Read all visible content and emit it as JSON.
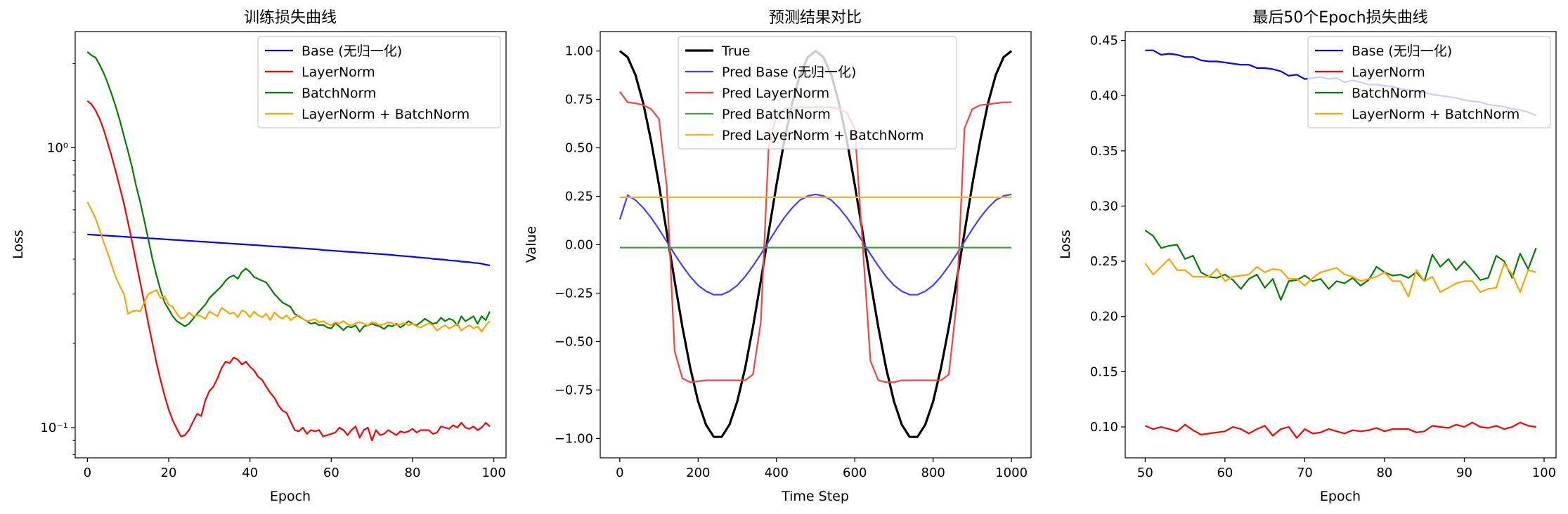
{
  "colors": {
    "blue": "#0000ff",
    "red": "#ff0000",
    "green": "#008000",
    "orange": "#ffa500",
    "black": "#000000"
  },
  "chart_data": [
    {
      "type": "line",
      "title": "训练损失曲线",
      "xlabel": "Epoch",
      "ylabel": "Loss",
      "yscale": "log",
      "xlim": [
        -3,
        103
      ],
      "ylim": [
        0.078,
        2.6
      ],
      "xticks": [
        0,
        20,
        40,
        60,
        80,
        100
      ],
      "xtick_labels": [
        "0",
        "20",
        "40",
        "60",
        "80",
        "100"
      ],
      "yticks": [
        0.1,
        1.0
      ],
      "ytick_labels": [
        "10⁻¹",
        "10⁰"
      ],
      "legend_position": "top-right",
      "series": [
        {
          "name": "Base (无归一化)",
          "color": "#0000ff",
          "x_start": 0,
          "x_step": 1,
          "values": [
            0.49,
            0.489,
            0.488,
            0.487,
            0.486,
            0.485,
            0.484,
            0.483,
            0.482,
            0.481,
            0.48,
            0.479,
            0.478,
            0.477,
            0.476,
            0.475,
            0.474,
            0.473,
            0.472,
            0.471,
            0.47,
            0.469,
            0.468,
            0.467,
            0.466,
            0.465,
            0.464,
            0.463,
            0.462,
            0.461,
            0.46,
            0.459,
            0.458,
            0.457,
            0.456,
            0.455,
            0.454,
            0.453,
            0.452,
            0.451,
            0.45,
            0.449,
            0.448,
            0.447,
            0.446,
            0.445,
            0.444,
            0.443,
            0.442,
            0.441,
            0.44,
            0.439,
            0.438,
            0.437,
            0.436,
            0.435,
            0.434,
            0.433,
            0.431,
            0.43,
            0.429,
            0.428,
            0.427,
            0.426,
            0.425,
            0.424,
            0.423,
            0.422,
            0.421,
            0.42,
            0.419,
            0.418,
            0.417,
            0.416,
            0.415,
            0.414,
            0.412,
            0.411,
            0.41,
            0.409,
            0.408,
            0.406,
            0.405,
            0.404,
            0.403,
            0.401,
            0.4,
            0.399,
            0.398,
            0.396,
            0.395,
            0.394,
            0.392,
            0.391,
            0.39,
            0.388,
            0.387,
            0.385,
            0.382,
            0.38
          ]
        },
        {
          "name": "LayerNorm",
          "color": "#ff0000",
          "x_start": 0,
          "x_step": 1,
          "values": [
            1.47,
            1.43,
            1.36,
            1.27,
            1.16,
            1.04,
            0.93,
            0.82,
            0.72,
            0.63,
            0.54,
            0.46,
            0.39,
            0.33,
            0.28,
            0.235,
            0.2,
            0.17,
            0.148,
            0.13,
            0.116,
            0.106,
            0.099,
            0.093,
            0.094,
            0.098,
            0.105,
            0.112,
            0.11,
            0.125,
            0.135,
            0.14,
            0.15,
            0.163,
            0.172,
            0.17,
            0.178,
            0.175,
            0.168,
            0.172,
            0.165,
            0.16,
            0.152,
            0.148,
            0.14,
            0.133,
            0.128,
            0.12,
            0.115,
            0.113,
            0.105,
            0.098,
            0.097,
            0.1,
            0.095,
            0.098,
            0.097,
            0.098,
            0.093,
            0.094,
            0.095,
            0.096,
            0.1,
            0.098,
            0.094,
            0.098,
            0.101,
            0.092,
            0.098,
            0.1,
            0.09,
            0.098,
            0.094,
            0.095,
            0.098,
            0.096,
            0.094,
            0.097,
            0.096,
            0.097,
            0.099,
            0.096,
            0.098,
            0.098,
            0.098,
            0.095,
            0.096,
            0.101,
            0.1,
            0.099,
            0.102,
            0.1,
            0.104,
            0.1,
            0.099,
            0.101,
            0.098,
            0.1,
            0.104,
            0.101
          ]
        },
        {
          "name": "BatchNorm",
          "color": "#008000",
          "x_start": 0,
          "x_step": 1,
          "values": [
            2.2,
            2.14,
            2.1,
            1.98,
            1.85,
            1.7,
            1.55,
            1.4,
            1.25,
            1.1,
            0.97,
            0.85,
            0.73,
            0.64,
            0.55,
            0.47,
            0.4,
            0.35,
            0.31,
            0.28,
            0.265,
            0.25,
            0.24,
            0.235,
            0.23,
            0.235,
            0.245,
            0.255,
            0.265,
            0.275,
            0.29,
            0.3,
            0.31,
            0.32,
            0.335,
            0.345,
            0.35,
            0.34,
            0.36,
            0.37,
            0.36,
            0.345,
            0.34,
            0.335,
            0.33,
            0.315,
            0.3,
            0.29,
            0.28,
            0.275,
            0.27,
            0.255,
            0.25,
            0.245,
            0.24,
            0.235,
            0.237,
            0.232,
            0.233,
            0.228,
            0.226,
            0.236,
            0.23,
            0.223,
            0.23,
            0.228,
            0.232,
            0.22,
            0.23,
            0.232,
            0.235,
            0.232,
            0.23,
            0.225,
            0.232,
            0.23,
            0.235,
            0.228,
            0.233,
            0.24,
            0.235,
            0.232,
            0.238,
            0.245,
            0.24,
            0.235,
            0.237,
            0.247,
            0.24,
            0.245,
            0.242,
            0.232,
            0.25,
            0.24,
            0.245,
            0.25,
            0.235,
            0.25,
            0.242,
            0.26
          ]
        },
        {
          "name": "LayerNorm + BatchNorm",
          "color": "#ffa500",
          "x_start": 0,
          "x_step": 1,
          "values": [
            0.64,
            0.6,
            0.56,
            0.51,
            0.46,
            0.42,
            0.38,
            0.345,
            0.32,
            0.3,
            0.255,
            0.26,
            0.262,
            0.26,
            0.28,
            0.3,
            0.305,
            0.31,
            0.29,
            0.295,
            0.275,
            0.27,
            0.255,
            0.245,
            0.248,
            0.258,
            0.25,
            0.252,
            0.25,
            0.245,
            0.26,
            0.255,
            0.25,
            0.268,
            0.262,
            0.255,
            0.258,
            0.248,
            0.262,
            0.258,
            0.248,
            0.26,
            0.252,
            0.248,
            0.255,
            0.242,
            0.258,
            0.25,
            0.245,
            0.252,
            0.242,
            0.248,
            0.252,
            0.245,
            0.24,
            0.242,
            0.244,
            0.238,
            0.24,
            0.235,
            0.232,
            0.238,
            0.236,
            0.24,
            0.234,
            0.232,
            0.236,
            0.238,
            0.235,
            0.232,
            0.238,
            0.236,
            0.232,
            0.234,
            0.238,
            0.236,
            0.232,
            0.234,
            0.236,
            0.232,
            0.235,
            0.23,
            0.228,
            0.232,
            0.236,
            0.232,
            0.222,
            0.228,
            0.232,
            0.226,
            0.23,
            0.235,
            0.222,
            0.228,
            0.232,
            0.226,
            0.23,
            0.22,
            0.232,
            0.24
          ]
        }
      ]
    },
    {
      "type": "line",
      "title": "预测结果对比",
      "xlabel": "Time Step",
      "ylabel": "Value",
      "yscale": "linear",
      "xlim": [
        -50,
        1050
      ],
      "ylim": [
        -1.1,
        1.1
      ],
      "xticks": [
        0,
        200,
        400,
        600,
        800,
        1000
      ],
      "xtick_labels": [
        "0",
        "200",
        "400",
        "600",
        "800",
        "1000"
      ],
      "yticks": [
        1.0,
        0.75,
        0.5,
        0.25,
        0.0,
        -0.25,
        -0.5,
        -0.75,
        -1.0
      ],
      "ytick_labels": [
        "1.00",
        "0.75",
        "0.50",
        "0.25",
        "0.00",
        "−0.25",
        "−0.50",
        "−0.75",
        "−1.00"
      ],
      "legend_position": "top-left",
      "series": [
        {
          "name": "True",
          "color": "#000000",
          "x_start": 0,
          "x_step": 20,
          "values": [
            1.0,
            0.968,
            0.876,
            0.729,
            0.536,
            0.309,
            0.063,
            -0.187,
            -0.426,
            -0.637,
            -0.809,
            -0.929,
            -0.992,
            -0.992,
            -0.929,
            -0.809,
            -0.637,
            -0.426,
            -0.187,
            0.063,
            0.309,
            0.536,
            0.729,
            0.876,
            0.968,
            1.0,
            0.968,
            0.876,
            0.729,
            0.536,
            0.309,
            0.063,
            -0.187,
            -0.426,
            -0.637,
            -0.809,
            -0.929,
            -0.992,
            -0.992,
            -0.929,
            -0.809,
            -0.637,
            -0.426,
            -0.187,
            0.063,
            0.309,
            0.536,
            0.729,
            0.876,
            0.968,
            1.0
          ]
        },
        {
          "name": "Pred Base (无归一化)",
          "color": "#4040ff",
          "x_start": 0,
          "x_step": 20,
          "values": [
            0.13,
            0.255,
            0.23,
            0.19,
            0.14,
            0.08,
            0.016,
            -0.049,
            -0.11,
            -0.165,
            -0.21,
            -0.24,
            -0.258,
            -0.258,
            -0.24,
            -0.21,
            -0.165,
            -0.11,
            -0.049,
            0.016,
            0.08,
            0.14,
            0.19,
            0.23,
            0.252,
            0.26,
            0.252,
            0.23,
            0.19,
            0.14,
            0.08,
            0.016,
            -0.049,
            -0.11,
            -0.165,
            -0.21,
            -0.24,
            -0.258,
            -0.258,
            -0.24,
            -0.21,
            -0.165,
            -0.11,
            -0.049,
            0.016,
            0.08,
            0.14,
            0.19,
            0.23,
            0.252,
            0.26
          ]
        },
        {
          "name": "Pred LayerNorm",
          "color": "#ff4040",
          "x_start": 0,
          "x_step": 20,
          "values": [
            0.79,
            0.735,
            0.73,
            0.72,
            0.7,
            0.65,
            0.3,
            -0.55,
            -0.69,
            -0.71,
            -0.705,
            -0.7,
            -0.7,
            -0.7,
            -0.7,
            -0.7,
            -0.7,
            -0.67,
            -0.4,
            0.5,
            0.67,
            0.7,
            0.71,
            0.71,
            0.71,
            0.71,
            0.71,
            0.71,
            0.7,
            0.68,
            0.6,
            0.0,
            -0.6,
            -0.7,
            -0.71,
            -0.71,
            -0.7,
            -0.7,
            -0.7,
            -0.7,
            -0.7,
            -0.7,
            -0.67,
            -0.3,
            0.6,
            0.7,
            0.72,
            0.725,
            0.73,
            0.735,
            0.735
          ]
        },
        {
          "name": "Pred BatchNorm",
          "color": "#40a040",
          "x_start": 0,
          "x_step": 1000,
          "values": [
            -0.015,
            -0.015
          ]
        },
        {
          "name": "Pred LayerNorm + BatchNorm",
          "color": "#ffb030",
          "x_start": 0,
          "x_step": 1000,
          "values": [
            0.245,
            0.245
          ]
        }
      ]
    },
    {
      "type": "line",
      "title": "最后50个Epoch损失曲线",
      "xlabel": "Epoch",
      "ylabel": "Loss",
      "yscale": "linear",
      "xlim": [
        47.5,
        101.5
      ],
      "ylim": [
        0.072,
        0.458
      ],
      "xticks": [
        50,
        60,
        70,
        80,
        90,
        100
      ],
      "xtick_labels": [
        "50",
        "60",
        "70",
        "80",
        "90",
        "100"
      ],
      "yticks": [
        0.1,
        0.15,
        0.2,
        0.25,
        0.3,
        0.35,
        0.4,
        0.45
      ],
      "ytick_labels": [
        "0.10",
        "0.15",
        "0.20",
        "0.25",
        "0.30",
        "0.35",
        "0.40",
        "0.45"
      ],
      "legend_position": "top-right",
      "series": [
        {
          "name": "Base (无归一化)",
          "color": "#0000ff",
          "x_start": 50,
          "x_step": 1,
          "values": [
            0.441,
            0.441,
            0.437,
            0.438,
            0.437,
            0.435,
            0.435,
            0.432,
            0.431,
            0.431,
            0.43,
            0.429,
            0.428,
            0.428,
            0.425,
            0.425,
            0.424,
            0.422,
            0.418,
            0.419,
            0.415,
            0.416,
            0.417,
            0.415,
            0.416,
            0.412,
            0.414,
            0.412,
            0.41,
            0.41,
            0.409,
            0.408,
            0.406,
            0.405,
            0.404,
            0.403,
            0.401,
            0.4,
            0.399,
            0.398,
            0.396,
            0.395,
            0.394,
            0.392,
            0.391,
            0.39,
            0.388,
            0.387,
            0.385,
            0.382
          ]
        },
        {
          "name": "LayerNorm",
          "color": "#ff0000",
          "x_start": 50,
          "x_step": 1,
          "values": [
            0.101,
            0.098,
            0.1,
            0.098,
            0.096,
            0.102,
            0.097,
            0.093,
            0.094,
            0.095,
            0.096,
            0.1,
            0.098,
            0.094,
            0.098,
            0.101,
            0.092,
            0.098,
            0.1,
            0.09,
            0.098,
            0.094,
            0.095,
            0.098,
            0.096,
            0.094,
            0.097,
            0.096,
            0.097,
            0.099,
            0.096,
            0.098,
            0.098,
            0.098,
            0.095,
            0.096,
            0.101,
            0.1,
            0.099,
            0.102,
            0.1,
            0.104,
            0.1,
            0.099,
            0.101,
            0.098,
            0.1,
            0.104,
            0.101,
            0.1
          ]
        },
        {
          "name": "BatchNorm",
          "color": "#008000",
          "x_start": 50,
          "x_step": 1,
          "values": [
            0.278,
            0.273,
            0.262,
            0.264,
            0.265,
            0.252,
            0.255,
            0.24,
            0.236,
            0.235,
            0.238,
            0.233,
            0.225,
            0.234,
            0.238,
            0.226,
            0.234,
            0.215,
            0.232,
            0.233,
            0.237,
            0.232,
            0.234,
            0.225,
            0.232,
            0.23,
            0.235,
            0.228,
            0.233,
            0.245,
            0.24,
            0.237,
            0.238,
            0.235,
            0.24,
            0.232,
            0.256,
            0.245,
            0.252,
            0.242,
            0.25,
            0.242,
            0.233,
            0.235,
            0.255,
            0.25,
            0.235,
            0.257,
            0.243,
            0.262
          ]
        },
        {
          "name": "LayerNorm + BatchNorm",
          "color": "#ffa500",
          "x_start": 50,
          "x_step": 1,
          "values": [
            0.248,
            0.238,
            0.245,
            0.252,
            0.242,
            0.242,
            0.236,
            0.236,
            0.236,
            0.243,
            0.232,
            0.236,
            0.237,
            0.238,
            0.245,
            0.24,
            0.243,
            0.242,
            0.234,
            0.234,
            0.228,
            0.235,
            0.24,
            0.242,
            0.244,
            0.238,
            0.236,
            0.232,
            0.234,
            0.236,
            0.24,
            0.232,
            0.232,
            0.218,
            0.242,
            0.232,
            0.236,
            0.222,
            0.226,
            0.23,
            0.232,
            0.232,
            0.222,
            0.225,
            0.226,
            0.248,
            0.238,
            0.222,
            0.242,
            0.24
          ]
        }
      ]
    }
  ]
}
